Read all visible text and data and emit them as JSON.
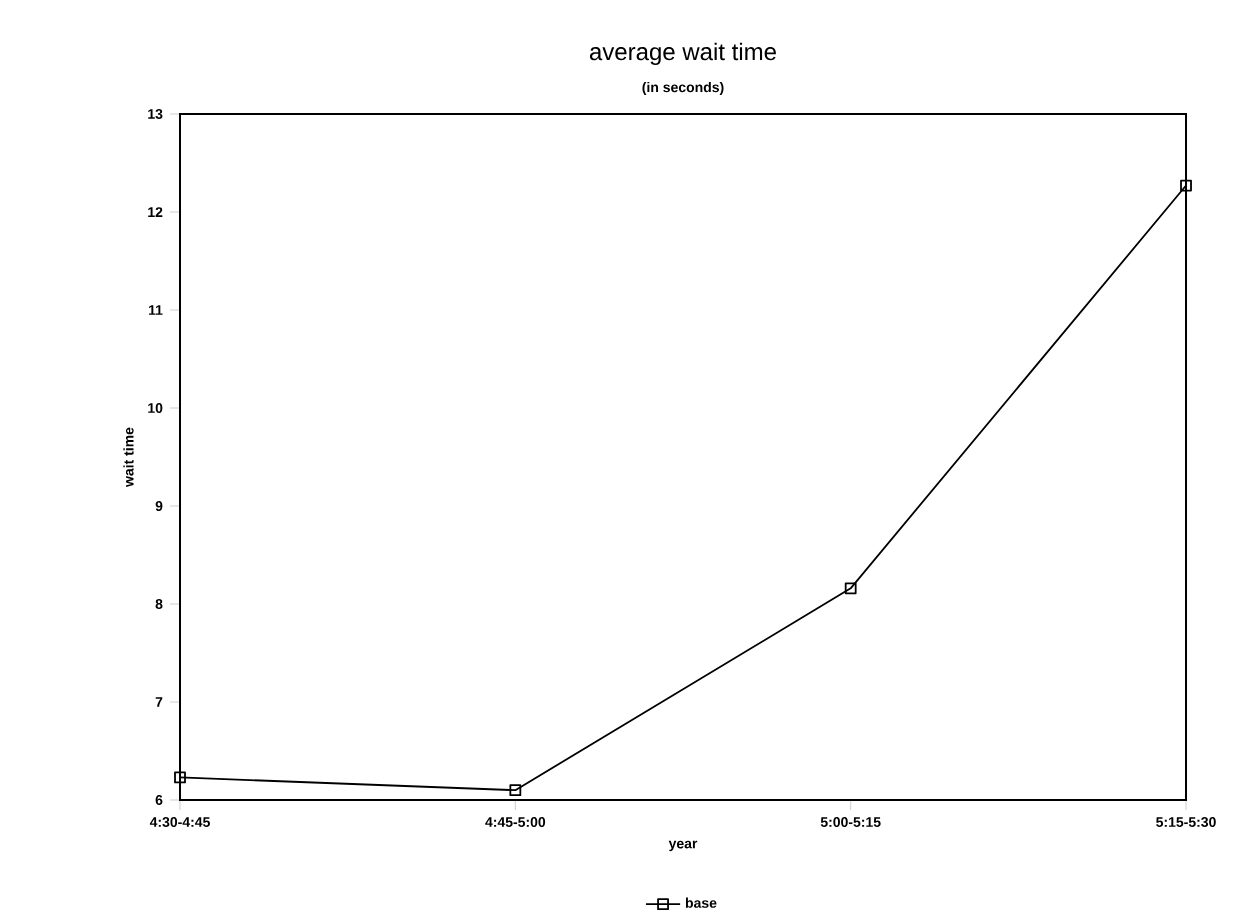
{
  "chart_data": {
    "type": "line",
    "title": "average wait time",
    "subtitle": "(in seconds)",
    "xlabel": "year",
    "ylabel": "wait time",
    "categories": [
      "4:30-4:45",
      "4:45-5:00",
      "5:00-5:15",
      "5:15-5:30"
    ],
    "series": [
      {
        "name": "base",
        "color": "#000000",
        "values": [
          6.23,
          6.1,
          8.16,
          12.27
        ]
      }
    ],
    "ylim": [
      6,
      13
    ],
    "yticks": [
      6,
      7,
      8,
      9,
      10,
      11,
      12,
      13
    ],
    "grid": false,
    "legend": "bottom",
    "marker": "square",
    "line_style": "solid"
  }
}
